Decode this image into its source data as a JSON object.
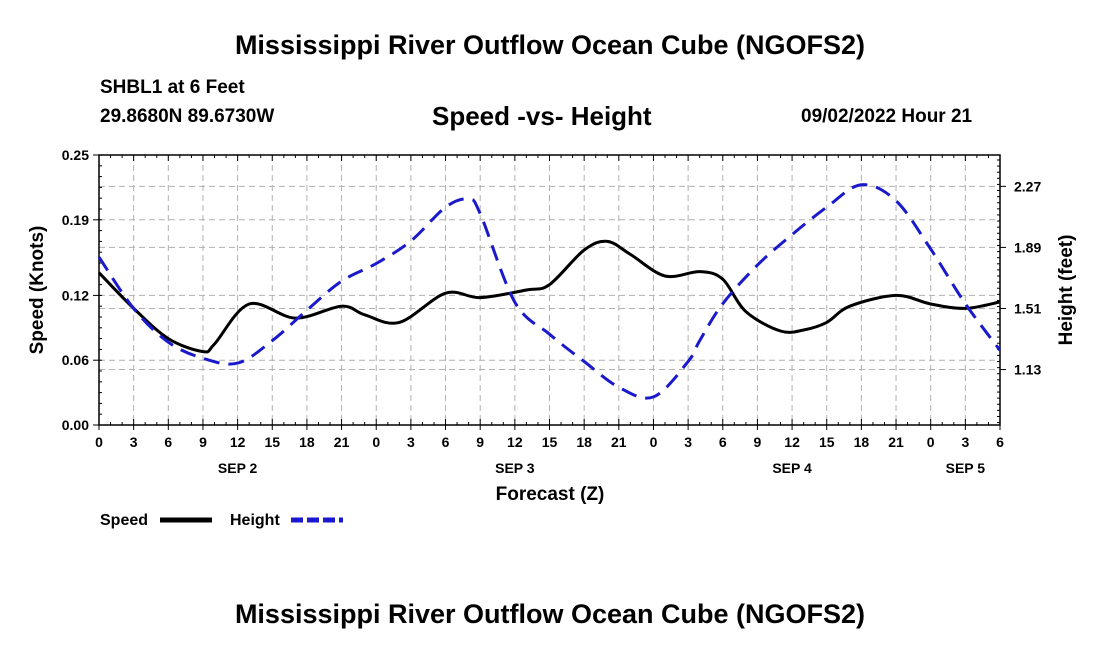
{
  "header": {
    "title": "Mississippi River Outflow Ocean Cube (NGOFS2)",
    "station": "SHBL1 at 6 Feet",
    "coords": "29.8680N  89.6730W",
    "subtitle": "Speed -vs- Height",
    "datetime": "09/02/2022 Hour 21"
  },
  "footer": {
    "title": "Mississippi River Outflow Ocean Cube (NGOFS2)"
  },
  "colors": {
    "speed": "#000000",
    "height": "#1a1acc",
    "grid": "#b0b0b0"
  },
  "chart_data": {
    "type": "line",
    "title": "Speed -vs- Height",
    "xlabel": "Forecast (Z)",
    "ylabel": "Speed (Knots)",
    "y2label": "Height (feet)",
    "x_unit": "hours from SEP 2 00Z",
    "xlim": [
      0,
      78
    ],
    "ylim": [
      0,
      0.25
    ],
    "y2lim": [
      0.785,
      2.465
    ],
    "x_ticks": [
      0,
      3,
      6,
      9,
      12,
      15,
      18,
      21,
      24,
      27,
      30,
      33,
      36,
      39,
      42,
      45,
      48,
      51,
      54,
      57,
      60,
      63,
      66,
      69,
      72,
      75,
      78
    ],
    "x_tick_labels": [
      "0",
      "3",
      "6",
      "9",
      "12",
      "15",
      "18",
      "21",
      "0",
      "3",
      "6",
      "9",
      "12",
      "15",
      "18",
      "21",
      "0",
      "3",
      "6",
      "9",
      "12",
      "15",
      "18",
      "21",
      "0",
      "3",
      "6"
    ],
    "date_labels": [
      {
        "x": 12,
        "label": "SEP 2"
      },
      {
        "x": 36,
        "label": "SEP 3"
      },
      {
        "x": 60,
        "label": "SEP 4"
      },
      {
        "x": 75,
        "label": "SEP 5"
      }
    ],
    "y_ticks": [
      0.0,
      0.06,
      0.12,
      0.19,
      0.25
    ],
    "y_tick_labels": [
      "0.00",
      "0.06",
      "0.12",
      "0.19",
      "0.25"
    ],
    "y2_ticks": [
      1.13,
      1.51,
      1.89,
      2.27
    ],
    "y2_tick_labels": [
      "1.13",
      "1.51",
      "1.89",
      "2.27"
    ],
    "grid": true,
    "legend": {
      "position": "bottom-left",
      "entries": [
        "Speed",
        "Height"
      ]
    },
    "series": [
      {
        "name": "Speed",
        "axis": "left",
        "style": "solid",
        "x": [
          0,
          3,
          6,
          9,
          10,
          13,
          17,
          21,
          23,
          26,
          30,
          33,
          37,
          39,
          42,
          44,
          46,
          49,
          52,
          54,
          56,
          59,
          61,
          63,
          65,
          69,
          72,
          75,
          78
        ],
        "y": [
          0.141,
          0.108,
          0.08,
          0.068,
          0.075,
          0.112,
          0.099,
          0.11,
          0.102,
          0.095,
          0.122,
          0.118,
          0.125,
          0.13,
          0.162,
          0.17,
          0.158,
          0.138,
          0.142,
          0.135,
          0.105,
          0.087,
          0.088,
          0.095,
          0.11,
          0.12,
          0.112,
          0.108,
          0.114
        ]
      },
      {
        "name": "Height",
        "axis": "right",
        "style": "dashed",
        "x": [
          0,
          3,
          6,
          9,
          12,
          15,
          18,
          21,
          24,
          27,
          30,
          32,
          33,
          36,
          39,
          42,
          45,
          48,
          51,
          52,
          54,
          57,
          60,
          63,
          66,
          69,
          72,
          75,
          78
        ],
        "y": [
          1.83,
          1.51,
          1.3,
          1.2,
          1.17,
          1.31,
          1.5,
          1.68,
          1.79,
          1.93,
          2.14,
          2.19,
          2.1,
          1.55,
          1.35,
          1.18,
          1.02,
          0.96,
          1.18,
          1.31,
          1.54,
          1.78,
          1.97,
          2.14,
          2.28,
          2.18,
          1.88,
          1.54,
          1.25
        ]
      }
    ]
  }
}
